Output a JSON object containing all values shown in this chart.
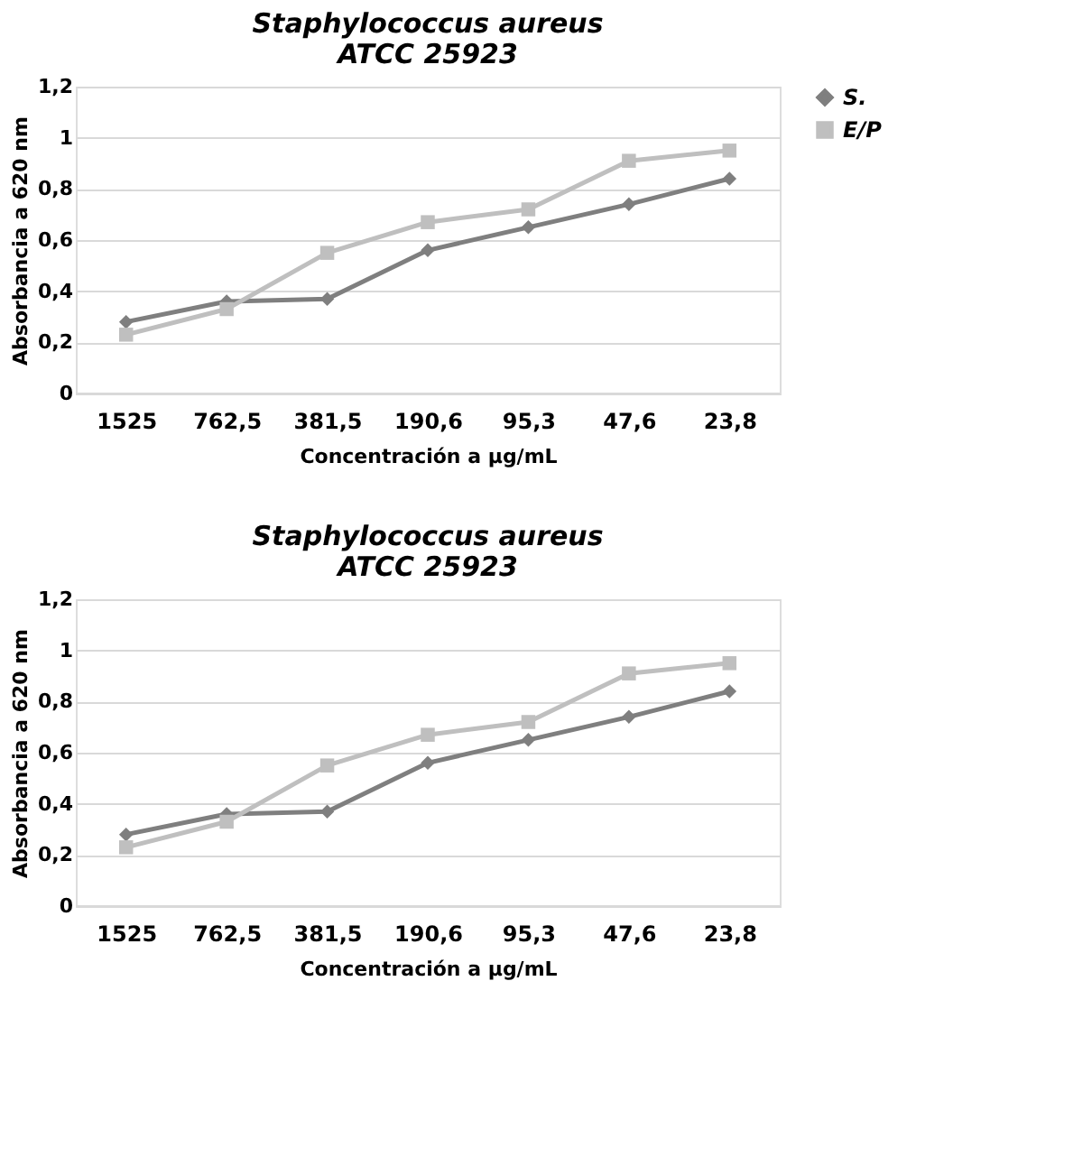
{
  "chart_data": [
    {
      "type": "line",
      "title": "Staphylococcus aureus\nATCC 25923",
      "xlabel": "Concentración a µg/mL",
      "ylabel": "Absorbancia a 620 nm",
      "categories": [
        "1525",
        "762,5",
        "381,5",
        "190,6",
        "95,3",
        "47,6",
        "23,8"
      ],
      "series": [
        {
          "name": "S.",
          "color": "#7f7f7f",
          "marker": "diamond",
          "values": [
            0.28,
            0.36,
            0.37,
            0.56,
            0.65,
            0.74,
            0.84
          ]
        },
        {
          "name": "E/P",
          "color": "#bfbfbf",
          "marker": "square",
          "values": [
            0.23,
            0.33,
            0.55,
            0.67,
            0.72,
            0.91,
            0.95
          ]
        }
      ],
      "ylim": [
        0,
        1.2
      ],
      "yticks": [
        0,
        {
          "value": 0.2,
          "label": "0,2"
        },
        {
          "value": 0.4,
          "label": "0,4"
        },
        {
          "value": 0.6,
          "label": "0,6"
        },
        {
          "value": 0.8,
          "label": "0,8"
        },
        1,
        {
          "value": 1.2,
          "label": "1,2"
        }
      ],
      "grid": "y",
      "legend": "right",
      "line_style": "solid"
    },
    {
      "type": "line",
      "title": "Staphylococcus aureus\nATCC 25923",
      "xlabel": "Concentración a µg/mL",
      "ylabel": "Absorbancia a 620 nm",
      "categories": [
        "1525",
        "762,5",
        "381,5",
        "190,6",
        "95,3",
        "47,6",
        "23,8"
      ],
      "series": [
        {
          "name": "S.",
          "color": "#7f7f7f",
          "marker": "diamond",
          "values": [
            0.28,
            0.36,
            0.37,
            0.56,
            0.65,
            0.74,
            0.84
          ]
        },
        {
          "name": "E/P",
          "color": "#bfbfbf",
          "marker": "square",
          "values": [
            0.23,
            0.33,
            0.55,
            0.67,
            0.72,
            0.91,
            0.95
          ]
        }
      ],
      "ylim": [
        0,
        1.2
      ],
      "yticks": [
        0,
        {
          "value": 0.2,
          "label": "0,2"
        },
        {
          "value": 0.4,
          "label": "0,4"
        },
        {
          "value": 0.6,
          "label": "0,6"
        },
        {
          "value": 0.8,
          "label": "0,8"
        },
        1,
        {
          "value": 1.2,
          "label": "1,2"
        }
      ],
      "grid": "y",
      "legend": "right",
      "line_style": "solid"
    }
  ]
}
